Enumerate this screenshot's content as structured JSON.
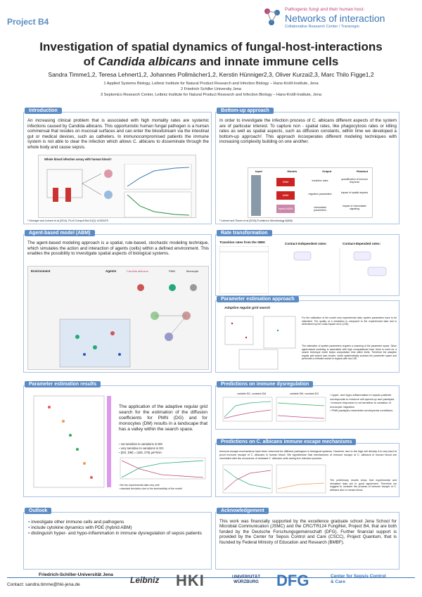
{
  "header": {
    "project": "Project B4",
    "brand_line1": "Pathogenic fungi and their human host:",
    "brand_line2": "Networks of interaction",
    "brand_line3": "Collaborative Research Center / Transregio",
    "title_line1": "Investigation of spatial dynamics of fungal-host-interactions",
    "title_line2_pre": "of ",
    "title_line2_italic": "Candida albicans",
    "title_line2_post": " and innate immune cells",
    "authors": "Sandra Timme1,2, Teresa Lehnert1,2, Johannes Pollmächer1,2, Kerstin Hünniger2,3, Oliver Kurzai2,3, Marc Thilo Figge1,2",
    "affil1": "1 Applied Systems Biology, Leibniz Institute for Natural Product Research and Infection Biology – Hans-Knöll-Institute, Jena",
    "affil2": "2 Friedrich Schiller University Jena",
    "affil3": "3 Septomics Research Center, Leibniz Institute for Natural Product Research and Infection Biology – Hans-Knöll-Institute, Jena"
  },
  "intro": {
    "title": "Introduction",
    "text": "An increasing clinical problem that is associated with high mortality rates are systemic infections caused by Candida albicans. This opportunistic human fungal pathogen is a human commensal that resides on mucosal surfaces and can enter the bloodstream via the intestinal gut or medical devices, such as catheters. In immunocompromised patients the immune system is not able to clear the infection which allows C. albicans to disseminate through the whole body and cause sepsis.",
    "fig_title": "Whole blood infection assay with human blood¹:",
    "ref": "¹ Hünniger and Lehnert et al.(2014), PLoS Comput Biol 10(2): e1003479"
  },
  "bottomup": {
    "title": "Bottom-up approach",
    "text": "In order to investigate the infection process of C. albicans different aspects of the system are of particular interest. To capture non - spatial rates, like phagocytosis rates or killing rates as well as spatial aspects, such as diffusion constants, within time we developed a bottom-up approach². This approach incooperates different modeling techniques with increasing complexity building on one another.",
    "cols": [
      "Input",
      "Models",
      "Output",
      "Readout"
    ],
    "models": [
      "SBM",
      "ABM",
      "hybrid ABM"
    ],
    "outputs": [
      "transition rates",
      "migration parameters",
      "chemotaxis parameters"
    ],
    "readouts": [
      "quantification of immune response",
      "impact of spatial aspects",
      "impact of chemotactic signaling"
    ],
    "ref": "² Lehnert and Timme et al.(2015),Frontiers in Microbiology 6(608)"
  },
  "abm": {
    "title": "Agent-based model (ABM)",
    "text": "The agent-based modeling approach is a spatial, rule-based, stochastic modeling technique, which simulates the action and interaction of agents (cells) within a defined environment. This enables the possibility to investigate spatial aspects of biological systems.",
    "fig_env": "Environment",
    "fig_agents": "Agents",
    "fig_agent_names": [
      "Candida albicans",
      "PMN",
      "Monocyte"
    ]
  },
  "rate": {
    "title": "Rate transformation",
    "table_title": "Transition rates from the SBM:",
    "col_left": "Contact-independent rates:",
    "col_right": "Contact-depended rates:"
  },
  "param_est": {
    "title": "Parameter estimation approach",
    "fig_title": "Adaptive regular grid search",
    "text1": "For the calibration of the model onto experimental data, system parameters have to be estimated. The quality of a simulation is compared to the experimental data and is determined by the Least-Square error (LSE):",
    "text2": "The estimation of system parameters requires a scanning of the parameter space. Since agent-based modeling is associated with high computational load, there is need for a search technique which keeps computation time within limits. Therefore the adaptive regular grid search was chosen, which systematically scanses the parameter space and performes a refinded search in regions with low LSE."
  },
  "results": {
    "title": "Parameter estimation results",
    "text": "The application of the adaptive regular grid search for the estimation of the diffusion coefficients for PMN (DG) and for monocytes (DM) results in a landscape that has a valley within the search space.",
    "bullets": [
      "not sensitive to variations in DM",
      "very sensitive to variations in DG",
      "(DG, DM) = (425, 275) μm²/min"
    ],
    "notes": [
      "fits the experimental data very well",
      "standard deviation due to the stochasticity of the model"
    ]
  },
  "dysreg": {
    "title": "Predictions on immune dysregulation",
    "panel_a": "variable DG, constant DM",
    "panel_b": "variable DM, constant DG",
    "bullets": [
      "hyper- and hypo-inflammation in sepsis patients corresponds to immune cell speed-up and paralysis",
      "immune response is not sensitive to variation of monocyte migration",
      "PMN paralysis resembles neutropenia conditions"
    ]
  },
  "escape": {
    "title": "Predictions on C. albicans immune escape mechanisms",
    "text": "Immune-escape mechanisms have been observed for different pathogens in biological systems. However, due to the high cell density it is very hard to proof immune escape of C. albicans in human blood. We hypothesise that mechanisms of immune escape of C. albicans in human blood are correlated with the occurance of resistant C. albicans cells during the infection process.",
    "note": "The preliminary results show, that experimental and simulated data are in good agreement. Therefore we suggest to consider the process of immune escape of C. albicans also in human blood."
  },
  "outlook": {
    "title": "Outlook",
    "bullets": [
      "investigate other immune cells and pathogens",
      "include cytokine dynamics with PDE (hybrid ABM)",
      "distinguish hyper- and hypo-inflammation in immune dysregulation of sepsis patients"
    ]
  },
  "ack": {
    "title": "Acknowledgement",
    "text": "This work was financially supported by the excellence graduate school Jena School for Microbial Communication (JSMC) and the CRC/TR124 FungiNet, Project B4, that are both funded by the Deutsche Forschungsgemeinschaft (DFG). Further financial support is provided by the Center for Sepsis Control and Care (CSCC), Project Quantum, that is founded by Federal Ministry of Education and Research (BMBF)."
  },
  "footer": {
    "uni": "Friedrich-Schiller-Universität Jena",
    "contact": "Contact: sandra.timme@hki-jena.de",
    "logos": [
      "Leibniz",
      "HKI",
      "UNIVERSITÄT WÜRZBURG",
      "DFG",
      "Center for Sepsis Control & Care"
    ]
  },
  "colors": {
    "accent": "#5b8bc4",
    "brand_pink": "#c0457a",
    "brand_blue": "#3b76b5"
  }
}
